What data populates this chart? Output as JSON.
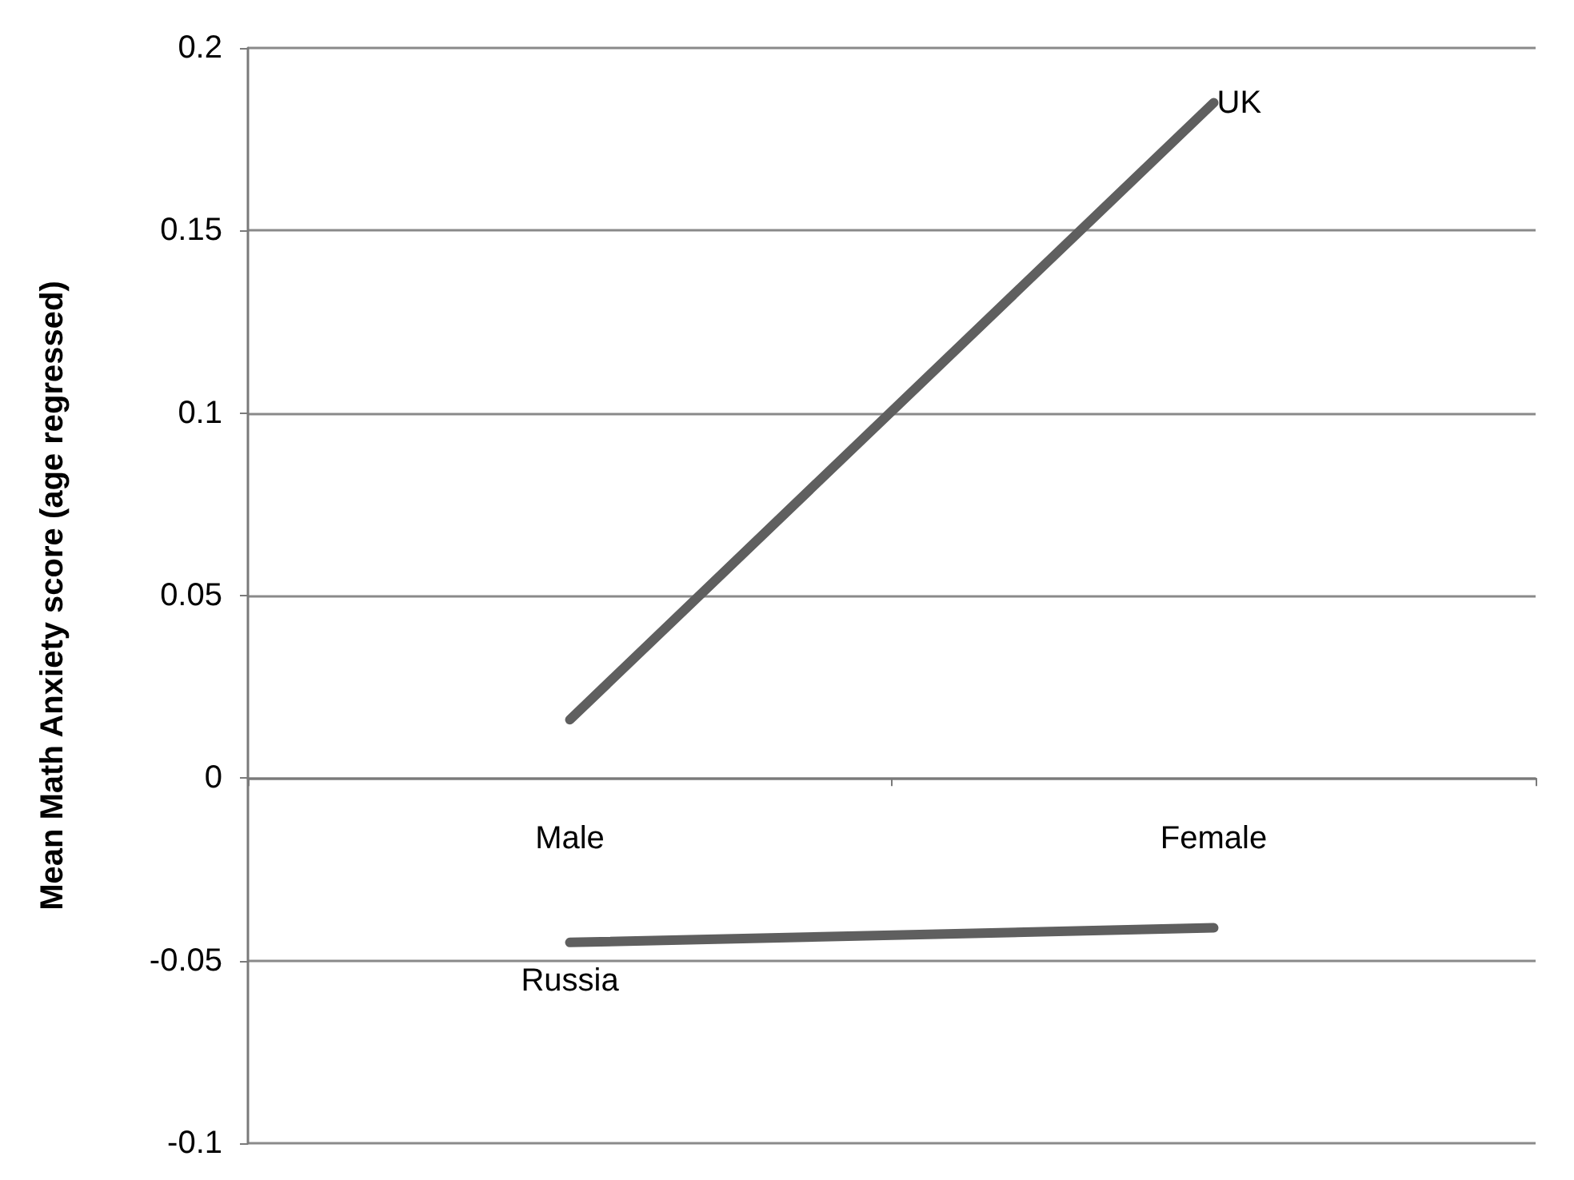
{
  "chart_data": {
    "type": "line",
    "ylabel": "Mean Math Anxiety score (age regressed)",
    "categories": [
      "Male",
      "Female"
    ],
    "series": [
      {
        "name": "UK",
        "color": "#5f5f5f",
        "values": [
          0.016,
          0.185
        ]
      },
      {
        "name": "Russia",
        "color": "#5f5f5f",
        "values": [
          -0.045,
          -0.041
        ]
      }
    ],
    "ylim": [
      -0.1,
      0.2
    ],
    "yticks": [
      -0.1,
      -0.05,
      0,
      0.05,
      0.1,
      0.15,
      0.2
    ],
    "grid": "y",
    "legend": false,
    "marker": "none",
    "line_style": "solid"
  }
}
